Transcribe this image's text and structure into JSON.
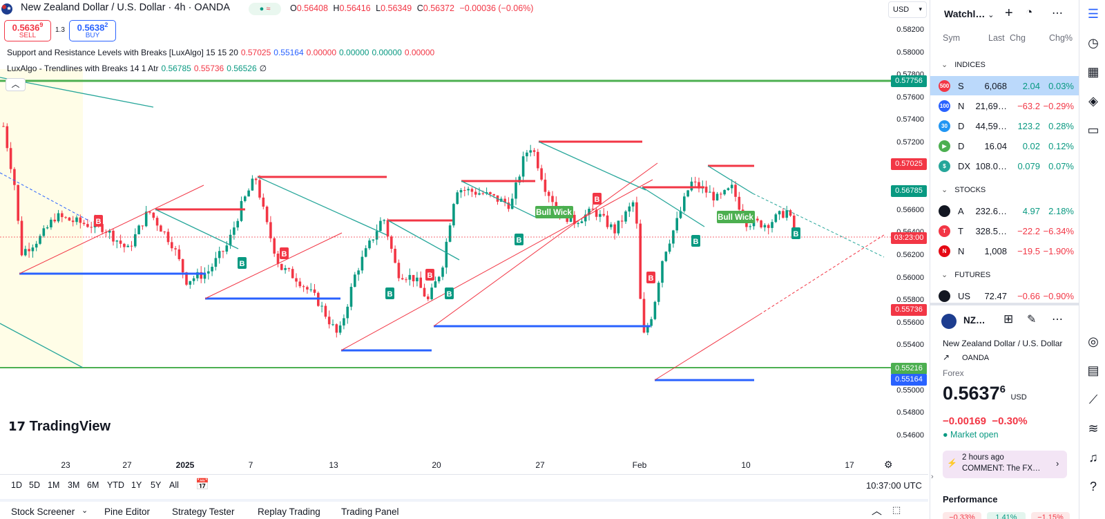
{
  "header": {
    "title": "New Zealand Dollar / U.S. Dollar · 4h · OANDA",
    "status_pill": "≈",
    "ohlc": {
      "o_label": "O",
      "o": "0.56408",
      "h_label": "H",
      "h": "0.56416",
      "l_label": "L",
      "l": "0.56349",
      "c_label": "C",
      "c": "0.56372",
      "change": "−0.00036 (−0.06%)"
    },
    "sell_price_main": "0.5636",
    "sell_price_sup": "9",
    "sell_label": "SELL",
    "spread": "1.3",
    "buy_price_main": "0.5638",
    "buy_price_sup": "2",
    "buy_label": "BUY",
    "currency": "USD"
  },
  "indicators": [
    {
      "name": "Support and Resistance Levels with Breaks [LuxAlgo] 15 15 20",
      "values": [
        {
          "v": "0.57025",
          "c": "#f23645"
        },
        {
          "v": "0.55164",
          "c": "#2962ff"
        },
        {
          "v": "0.00000",
          "c": "#f23645"
        },
        {
          "v": "0.00000",
          "c": "#089981"
        },
        {
          "v": "0.00000",
          "c": "#089981"
        },
        {
          "v": "0.00000",
          "c": "#f23645"
        }
      ]
    },
    {
      "name": "LuxAlgo - Trendlines with Breaks 14 1 Atr",
      "values": [
        {
          "v": "0.56785",
          "c": "#089981"
        },
        {
          "v": "0.55736",
          "c": "#f23645"
        },
        {
          "v": "0.56526",
          "c": "#089981"
        },
        {
          "v": "∅",
          "c": "#131722"
        }
      ]
    }
  ],
  "price_axis": {
    "ticks": [
      "0.58200",
      "0.58000",
      "0.57800",
      "0.57600",
      "0.57400",
      "0.57200",
      "0.56600",
      "0.56400",
      "0.56200",
      "0.56000",
      "0.55800",
      "0.55600",
      "0.55400",
      "0.55000",
      "0.54800",
      "0.54600"
    ],
    "tags": [
      {
        "v": "0.57756",
        "c": "#089981"
      },
      {
        "v": "0.57025",
        "c": "#f23645"
      },
      {
        "v": "0.56785",
        "c": "#089981"
      },
      {
        "v": "03:23:00",
        "c": "#f23645"
      },
      {
        "v": "0.55736",
        "c": "#f23645"
      },
      {
        "v": "0.55216",
        "c": "#4caf50"
      },
      {
        "v": "0.55164",
        "c": "#2962ff"
      }
    ]
  },
  "time_axis": [
    "23",
    "27",
    "2025",
    "7",
    "13",
    "20",
    "27",
    "Feb",
    "10",
    "17"
  ],
  "range_buttons": [
    "1D",
    "5D",
    "1M",
    "3M",
    "6M",
    "YTD",
    "1Y",
    "5Y",
    "All"
  ],
  "clock": "10:37:00 UTC",
  "bottom_tabs": [
    "Stock Screener",
    "Pine Editor",
    "Strategy Tester",
    "Replay Trading",
    "Trading Panel"
  ],
  "chart_labels": {
    "bull_wick": "Bull Wick",
    "buy": "B",
    "sell": "B",
    "logo": "TradingView"
  },
  "watchlist": {
    "title": "Watchl…",
    "cols": [
      "Sym",
      "Last",
      "Chg",
      "Chg%"
    ],
    "sections": [
      {
        "name": "INDICES",
        "rows": [
          {
            "icon": "500",
            "ic": "#f23645",
            "sym": "S",
            "last": "6,068",
            "chg": "2.04",
            "chgp": "0.03%",
            "dir": "up"
          },
          {
            "icon": "100",
            "ic": "#2962ff",
            "sym": "N",
            "last": "21,69…",
            "chg": "−63.2",
            "chgp": "−0.29%",
            "dir": "dn"
          },
          {
            "icon": "30",
            "ic": "#2196f3",
            "sym": "D",
            "last": "44,59…",
            "chg": "123.2",
            "chgp": "0.28%",
            "dir": "up"
          },
          {
            "icon": "▶",
            "ic": "#4caf50",
            "sym": "D",
            "last": "16.04",
            "chg": "0.02",
            "chgp": "0.12%",
            "dir": "up"
          },
          {
            "icon": "$",
            "ic": "#26a69a",
            "sym": "DX",
            "last": "108.0…",
            "chg": "0.079",
            "chgp": "0.07%",
            "dir": "up"
          }
        ]
      },
      {
        "name": "STOCKS",
        "rows": [
          {
            "icon": "",
            "ic": "#131722",
            "sym": "A",
            "last": "232.6…",
            "chg": "4.97",
            "chgp": "2.18%",
            "dir": "up"
          },
          {
            "icon": "T",
            "ic": "#f23645",
            "sym": "T",
            "last": "328.5…",
            "chg": "−22.2",
            "chgp": "−6.34%",
            "dir": "dn"
          },
          {
            "icon": "N",
            "ic": "#e50914",
            "sym": "N",
            "last": "1,008",
            "chg": "−19.5",
            "chgp": "−1.90%",
            "dir": "dn"
          }
        ]
      },
      {
        "name": "FUTURES",
        "rows": [
          {
            "icon": "",
            "ic": "#131722",
            "sym": "US",
            "last": "72.47",
            "chg": "−0.66",
            "chgp": "−0.90%",
            "dir": "dn"
          }
        ]
      }
    ]
  },
  "details": {
    "short": "NZ…",
    "name": "New Zealand Dollar / U.S. Dollar",
    "exchange": "OANDA",
    "type": "Forex",
    "price_main": "0.5637",
    "price_sup": "6",
    "currency": "USD",
    "change": "−0.00169",
    "change_pct": "−0.30%",
    "market": "Market open",
    "news_time": "2 hours ago",
    "news_text": "COMMENT: The FX…",
    "performance": "Performance",
    "perf_values": [
      "−0.33%",
      "1.41%",
      "−1.15%"
    ]
  }
}
